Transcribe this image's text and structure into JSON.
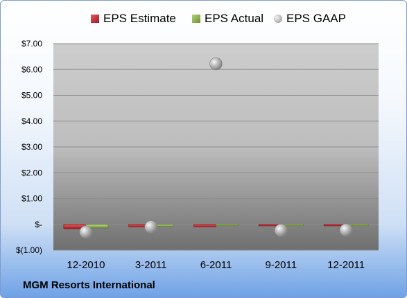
{
  "company": "MGM Resorts International",
  "chart_data": {
    "type": "bar",
    "categories": [
      "12-2010",
      "3-2011",
      "6-2011",
      "9-2011",
      "12-2011"
    ],
    "series": [
      {
        "name": "EPS Estimate",
        "kind": "bar",
        "color": "#c0272d",
        "values": [
          -0.17,
          -0.1,
          -0.1,
          -0.06,
          -0.06
        ]
      },
      {
        "name": "EPS Actual",
        "kind": "bar",
        "color": "#8cb04a",
        "values": [
          -0.14,
          -0.08,
          -0.04,
          -0.01,
          -0.04
        ]
      },
      {
        "name": "EPS GAAP",
        "kind": "scatter",
        "color": "#a6a6a6",
        "values": [
          -0.3,
          -0.1,
          6.22,
          -0.23,
          -0.22
        ]
      }
    ],
    "yticks": [
      "$(1.00)",
      "$-",
      "$1.00",
      "$2.00",
      "$3.00",
      "$4.00",
      "$5.00",
      "$6.00",
      "$7.00"
    ],
    "ylim": [
      -1,
      7
    ],
    "grid": true,
    "legend_position": "top"
  }
}
